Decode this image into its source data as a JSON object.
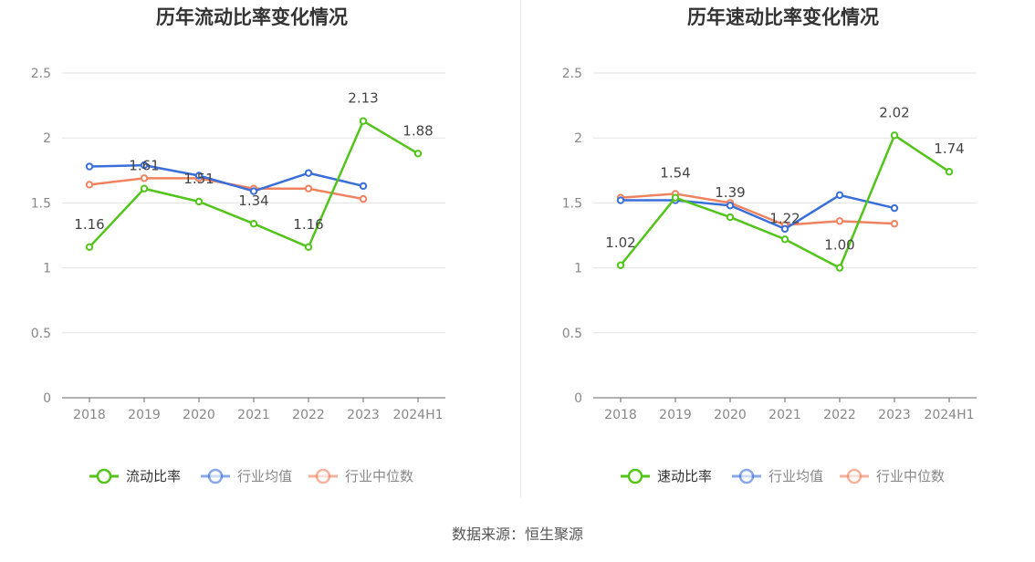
{
  "source_label": "数据来源：恒生聚源",
  "colors": {
    "main": "#52c41a",
    "avg": "#3a6fd9",
    "median": "#f0825f",
    "axis": "#666666",
    "grid": "#e3e3e3",
    "label": "#444444"
  },
  "chart_data": [
    {
      "type": "line",
      "title": "历年流动比率变化情况",
      "categories": [
        "2018",
        "2019",
        "2020",
        "2021",
        "2022",
        "2023",
        "2024H1"
      ],
      "y_ticks": [
        "0",
        "0.5",
        "1",
        "1.5",
        "2",
        "2.5"
      ],
      "ylim": [
        0,
        2.5
      ],
      "grid": true,
      "legend_position": "bottom",
      "series": [
        {
          "name": "流动比率",
          "role": "main",
          "values": [
            1.16,
            1.61,
            1.51,
            1.34,
            1.16,
            2.13,
            1.88
          ],
          "labels": [
            "1.16",
            "1.61",
            "1.51",
            "1.34",
            "1.16",
            "2.13",
            "1.88"
          ]
        },
        {
          "name": "行业均值",
          "role": "avg",
          "values": [
            1.78,
            1.79,
            1.71,
            1.59,
            1.73,
            1.63,
            null
          ]
        },
        {
          "name": "行业中位数",
          "role": "median",
          "values": [
            1.64,
            1.69,
            1.69,
            1.61,
            1.61,
            1.53,
            null
          ]
        }
      ]
    },
    {
      "type": "line",
      "title": "历年速动比率变化情况",
      "categories": [
        "2018",
        "2019",
        "2020",
        "2021",
        "2022",
        "2023",
        "2024H1"
      ],
      "y_ticks": [
        "0",
        "0.5",
        "1",
        "1.5",
        "2",
        "2.5"
      ],
      "ylim": [
        0,
        2.5
      ],
      "grid": true,
      "legend_position": "bottom",
      "series": [
        {
          "name": "速动比率",
          "role": "main",
          "values": [
            1.02,
            1.54,
            1.39,
            1.22,
            1.0,
            2.02,
            1.74
          ],
          "labels": [
            "1.02",
            "1.54",
            "1.39",
            "1.22",
            "1.00",
            "2.02",
            "1.74"
          ]
        },
        {
          "name": "行业均值",
          "role": "avg",
          "values": [
            1.52,
            1.52,
            1.48,
            1.3,
            1.56,
            1.46,
            null
          ]
        },
        {
          "name": "行业中位数",
          "role": "median",
          "values": [
            1.54,
            1.57,
            1.5,
            1.33,
            1.36,
            1.34,
            null
          ]
        }
      ]
    }
  ]
}
